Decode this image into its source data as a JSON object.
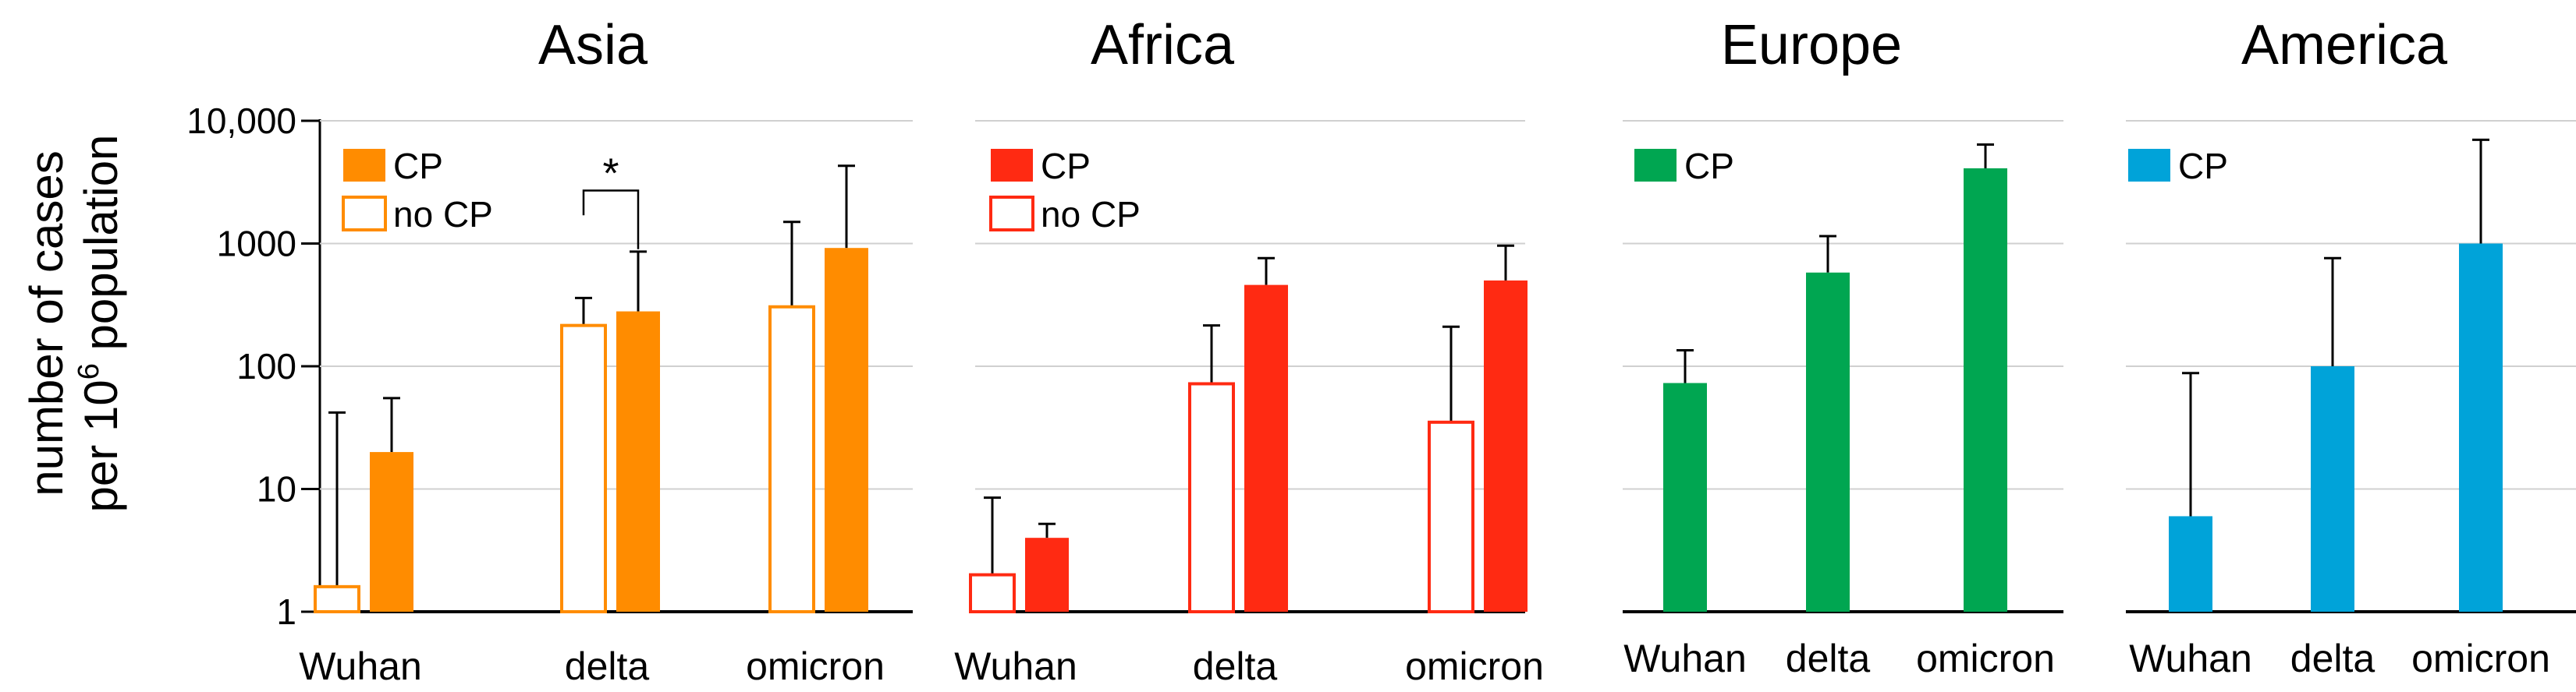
{
  "chart_data": {
    "type": "bar",
    "y_scale": "log",
    "ylim": [
      1,
      10000
    ],
    "y_ticks": [
      1,
      10,
      100,
      1000,
      10000
    ],
    "y_tick_labels": [
      "1",
      "10",
      "100",
      "1000",
      "10,000"
    ],
    "ylabel_line1": "number of cases",
    "ylabel_line2_pre": "per 10",
    "ylabel_line2_sup": "6",
    "ylabel_line2_post": " population",
    "categories": [
      "Wuhan",
      "delta",
      "omicron"
    ],
    "panels": [
      {
        "title": "Asia",
        "color": "#ff8c00",
        "legend": [
          "CP",
          "no CP"
        ],
        "series": [
          {
            "name": "no CP",
            "style": "open",
            "values": [
              1.6,
              215,
              305
            ],
            "errors": [
              42,
              360,
              1500
            ]
          },
          {
            "name": "CP",
            "style": "filled",
            "values": [
              20,
              280,
              920
            ],
            "errors": [
              55,
              860,
              4300
            ]
          }
        ],
        "significance": {
          "label": "*",
          "category": "delta"
        }
      },
      {
        "title": "Africa",
        "color": "#ff2a12",
        "legend": [
          "CP",
          "no CP"
        ],
        "series": [
          {
            "name": "no CP",
            "style": "open",
            "values": [
              2.0,
              72,
              35
            ],
            "errors": [
              8.5,
              215,
              210
            ]
          },
          {
            "name": "CP",
            "style": "filled",
            "values": [
              4.0,
              460,
              500
            ],
            "errors": [
              5.2,
              760,
              960
            ]
          }
        ]
      },
      {
        "title": "Europe",
        "color": "#00a651",
        "legend": [
          "CP"
        ],
        "series": [
          {
            "name": "CP",
            "style": "filled",
            "values": [
              73,
              580,
              4100
            ],
            "errors": [
              135,
              1150,
              6400
            ]
          }
        ]
      },
      {
        "title": "America",
        "color": "#00a3d9",
        "legend": [
          "CP"
        ],
        "series": [
          {
            "name": "CP",
            "style": "filled",
            "values": [
              6,
              100,
              1000
            ],
            "errors": [
              88,
              760,
              7000
            ]
          }
        ]
      }
    ]
  }
}
